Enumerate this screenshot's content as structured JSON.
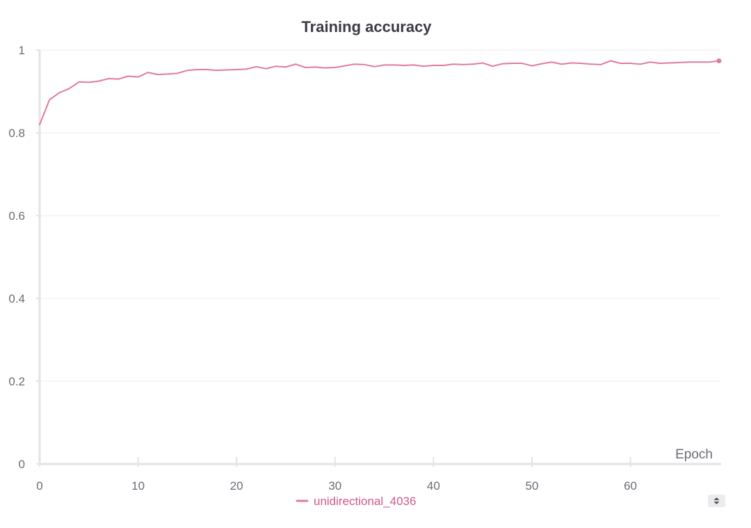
{
  "chart_data": {
    "type": "line",
    "title": "Training accuracy",
    "xlabel": "Epoch",
    "ylabel": "",
    "xlim": [
      0,
      69
    ],
    "ylim": [
      0,
      1
    ],
    "x_ticks": [
      0,
      10,
      20,
      30,
      40,
      50,
      60
    ],
    "y_ticks": [
      0,
      0.2,
      0.4,
      0.6,
      0.8,
      1
    ],
    "y_tick_labels": [
      "0",
      "0.2",
      "0.4",
      "0.6",
      "0.8",
      "1"
    ],
    "grid": true,
    "legend_position": "bottom-center",
    "series": [
      {
        "name": "unidirectional_4036",
        "color": "#e07a9e",
        "x": [
          0,
          1,
          2,
          3,
          4,
          5,
          6,
          7,
          8,
          9,
          10,
          11,
          12,
          13,
          14,
          15,
          16,
          17,
          18,
          19,
          20,
          21,
          22,
          23,
          24,
          25,
          26,
          27,
          28,
          29,
          30,
          31,
          32,
          33,
          34,
          35,
          36,
          37,
          38,
          39,
          40,
          41,
          42,
          43,
          44,
          45,
          46,
          47,
          48,
          49,
          50,
          51,
          52,
          53,
          54,
          55,
          56,
          57,
          58,
          59,
          60,
          61,
          62,
          63,
          64,
          65,
          66,
          67,
          68,
          69
        ],
        "values": [
          0.82,
          0.88,
          0.897,
          0.907,
          0.923,
          0.922,
          0.925,
          0.931,
          0.93,
          0.937,
          0.935,
          0.946,
          0.941,
          0.942,
          0.944,
          0.951,
          0.953,
          0.953,
          0.951,
          0.952,
          0.953,
          0.954,
          0.96,
          0.955,
          0.961,
          0.959,
          0.966,
          0.958,
          0.959,
          0.957,
          0.958,
          0.962,
          0.966,
          0.965,
          0.96,
          0.964,
          0.964,
          0.963,
          0.964,
          0.961,
          0.963,
          0.963,
          0.966,
          0.965,
          0.966,
          0.969,
          0.961,
          0.967,
          0.968,
          0.968,
          0.962,
          0.967,
          0.971,
          0.966,
          0.969,
          0.968,
          0.966,
          0.965,
          0.974,
          0.968,
          0.968,
          0.966,
          0.971,
          0.968,
          0.969,
          0.97,
          0.971,
          0.971,
          0.971,
          0.974
        ],
        "end_marker": true
      }
    ]
  },
  "legend": {
    "toggle_icon": "sort-arrows-icon"
  }
}
